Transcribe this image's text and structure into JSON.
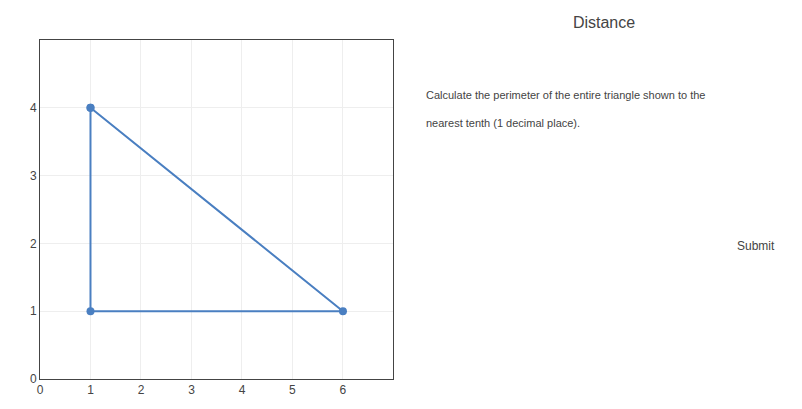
{
  "chart_data": {
    "type": "polygon",
    "title": "Distance",
    "x": [
      1,
      1,
      6
    ],
    "values": [
      4,
      1,
      1
    ],
    "color": "#4a7fc1",
    "marker": "circle",
    "xlim": [
      0,
      7
    ],
    "ylim": [
      0,
      5
    ],
    "xticks": [
      0,
      1,
      2,
      3,
      4,
      5,
      6
    ],
    "yticks": [
      0,
      1,
      2,
      3,
      4
    ],
    "grid": true,
    "annotations": [
      "Calculate the perimeter of the entire triangle shown to the",
      "nearest tenth (1 decimal place).",
      "Submit"
    ]
  }
}
